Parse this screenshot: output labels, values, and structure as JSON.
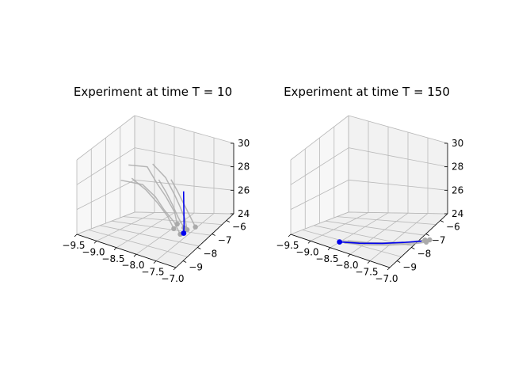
{
  "figure": {
    "background": "#ffffff"
  },
  "chart_data": [
    {
      "type": "line3d",
      "title": "Experiment at time T = 10",
      "x_ticks": [
        "−9.5",
        "−9.0",
        "−8.5",
        "−8.0",
        "−7.5",
        "−7.0"
      ],
      "y_ticks": [
        "−9",
        "−8",
        "−7",
        "−6"
      ],
      "z_ticks": [
        "24",
        "26",
        "28",
        "30"
      ],
      "xlim": [
        -9.5,
        -7.0
      ],
      "ylim": [
        -9.5,
        -5.5
      ],
      "zlim": [
        24,
        30
      ],
      "colors": {
        "trajectories": "#aaaaaa",
        "highlight": "#0000ee"
      },
      "gray_series": [
        [
          [
            -9.4,
            -6.2,
            28.4
          ],
          [
            -9.0,
            -6.0,
            28.6
          ],
          [
            -8.6,
            -6.4,
            27.8
          ],
          [
            -8.2,
            -6.9,
            27.4
          ],
          [
            -7.8,
            -7.4,
            26.8
          ],
          [
            -7.55,
            -7.9,
            26.3
          ]
        ],
        [
          [
            -9.3,
            -7.0,
            27.6
          ],
          [
            -8.9,
            -6.6,
            27.5
          ],
          [
            -8.5,
            -6.8,
            27.0
          ],
          [
            -8.1,
            -7.3,
            26.6
          ],
          [
            -7.7,
            -7.7,
            26.2
          ],
          [
            -7.4,
            -8.1,
            25.7
          ]
        ],
        [
          [
            -8.9,
            -5.9,
            28.9
          ],
          [
            -8.5,
            -6.1,
            28.3
          ],
          [
            -8.1,
            -6.6,
            27.6
          ],
          [
            -7.8,
            -7.0,
            27.0
          ],
          [
            -7.5,
            -7.5,
            26.6
          ],
          [
            -7.3,
            -7.9,
            26.1
          ]
        ],
        [
          [
            -8.6,
            -6.3,
            28.1
          ],
          [
            -8.3,
            -6.6,
            27.5
          ],
          [
            -8.0,
            -7.0,
            27.0
          ],
          [
            -7.7,
            -7.4,
            26.4
          ],
          [
            -7.45,
            -7.7,
            26.0
          ]
        ],
        [
          [
            -9.1,
            -6.8,
            27.9
          ],
          [
            -8.7,
            -6.9,
            27.4
          ],
          [
            -8.3,
            -7.2,
            26.9
          ],
          [
            -7.9,
            -7.6,
            26.4
          ],
          [
            -7.6,
            -8.0,
            25.9
          ]
        ],
        [
          [
            -8.4,
            -6.0,
            28.2
          ],
          [
            -8.1,
            -6.4,
            27.8
          ],
          [
            -7.8,
            -6.8,
            27.3
          ],
          [
            -7.5,
            -7.2,
            26.8
          ],
          [
            -7.2,
            -7.6,
            26.3
          ]
        ]
      ],
      "blue_series": [
        [
          -7.9,
          -6.5,
          28.0
        ],
        [
          -7.75,
          -6.9,
          27.4
        ],
        [
          -7.6,
          -7.3,
          26.9
        ],
        [
          -7.45,
          -7.7,
          26.3
        ],
        [
          -7.35,
          -8.0,
          25.8
        ]
      ]
    },
    {
      "type": "line3d",
      "title": "Experiment at time T = 150",
      "x_ticks": [
        "−9.5",
        "−9.0",
        "−8.5",
        "−8.0",
        "−7.5",
        "−7.0"
      ],
      "y_ticks": [
        "−9",
        "−8",
        "−7",
        "−6"
      ],
      "z_ticks": [
        "24",
        "26",
        "28",
        "30"
      ],
      "xlim": [
        -9.5,
        -7.0
      ],
      "ylim": [
        -9.5,
        -5.5
      ],
      "zlim": [
        24,
        30
      ],
      "colors": {
        "trajectories": "#aaaaaa",
        "highlight": "#0000ee"
      },
      "gray_series": [
        [
          [
            -8.4,
            -8.9,
            24.4
          ],
          [
            -8.0,
            -8.5,
            24.5
          ],
          [
            -7.6,
            -8.0,
            24.7
          ],
          [
            -7.2,
            -7.5,
            25.0
          ],
          [
            -6.95,
            -7.2,
            25.3
          ]
        ],
        [
          [
            -8.35,
            -8.95,
            24.3
          ],
          [
            -7.95,
            -8.55,
            24.4
          ],
          [
            -7.55,
            -8.05,
            24.6
          ],
          [
            -7.15,
            -7.55,
            24.9
          ],
          [
            -6.9,
            -7.25,
            25.2
          ]
        ],
        [
          [
            -8.3,
            -8.85,
            24.5
          ],
          [
            -7.9,
            -8.45,
            24.6
          ],
          [
            -7.5,
            -7.95,
            24.8
          ],
          [
            -7.1,
            -7.45,
            25.1
          ],
          [
            -6.85,
            -7.15,
            25.4
          ]
        ],
        [
          [
            -8.38,
            -8.9,
            24.35
          ],
          [
            -7.98,
            -8.5,
            24.45
          ],
          [
            -7.58,
            -8.0,
            24.65
          ],
          [
            -7.18,
            -7.5,
            24.95
          ],
          [
            -6.92,
            -7.2,
            25.25
          ]
        ]
      ],
      "blue_series": [
        [
          -8.45,
          -9.0,
          24.3
        ],
        [
          -8.1,
          -8.6,
          24.4
        ],
        [
          -7.7,
          -8.1,
          24.6
        ],
        [
          -7.3,
          -7.6,
          24.9
        ],
        [
          -7.0,
          -7.3,
          25.2
        ]
      ]
    }
  ]
}
